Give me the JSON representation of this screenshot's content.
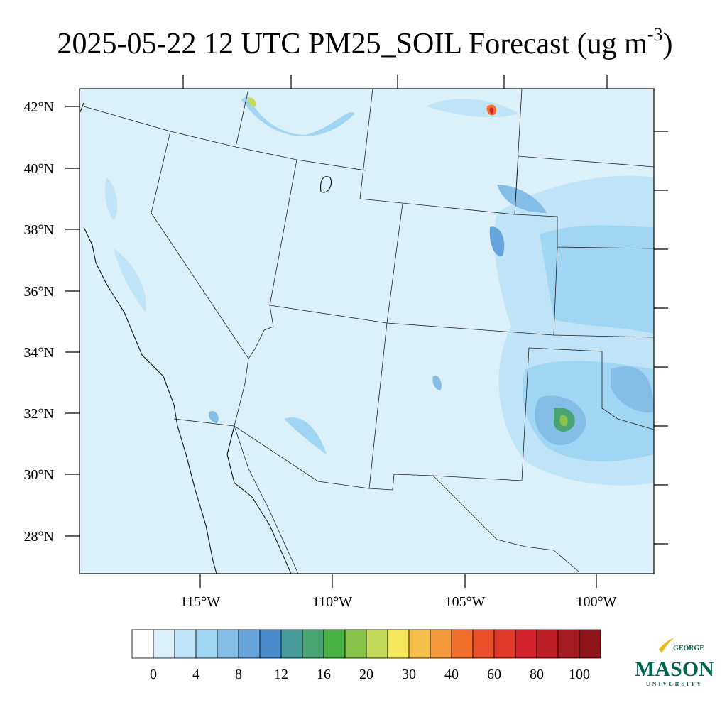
{
  "title": {
    "main": "2025-05-22 12 UTC PM25_SOIL Forecast (ug m",
    "superscript": "-3",
    "end": ")"
  },
  "lat_labels": [
    "42°N",
    "40°N",
    "38°N",
    "36°N",
    "34°N",
    "32°N",
    "30°N",
    "28°N"
  ],
  "lon_labels": [
    "115°W",
    "110°W",
    "105°W",
    "100°W"
  ],
  "colorbar": {
    "colors": [
      "#ffffff",
      "#dcf0fa",
      "#bfe4f7",
      "#a0d6f3",
      "#84bde6",
      "#67a4dc",
      "#4a8ccb",
      "#469b9b",
      "#48a472",
      "#48b244",
      "#88c44c",
      "#c3d95a",
      "#f5e85e",
      "#f6bf4c",
      "#f49a3c",
      "#f16f2c",
      "#e8512a",
      "#df3a2a",
      "#d2222c",
      "#bd1f26",
      "#a51b22",
      "#8e161b"
    ],
    "labels": [
      "0",
      "4",
      "8",
      "12",
      "16",
      "20",
      "30",
      "40",
      "60",
      "80",
      "100"
    ]
  },
  "logo": {
    "top": "GEORGE",
    "main": "MASON",
    "bottom": "UNIVERSITY"
  }
}
